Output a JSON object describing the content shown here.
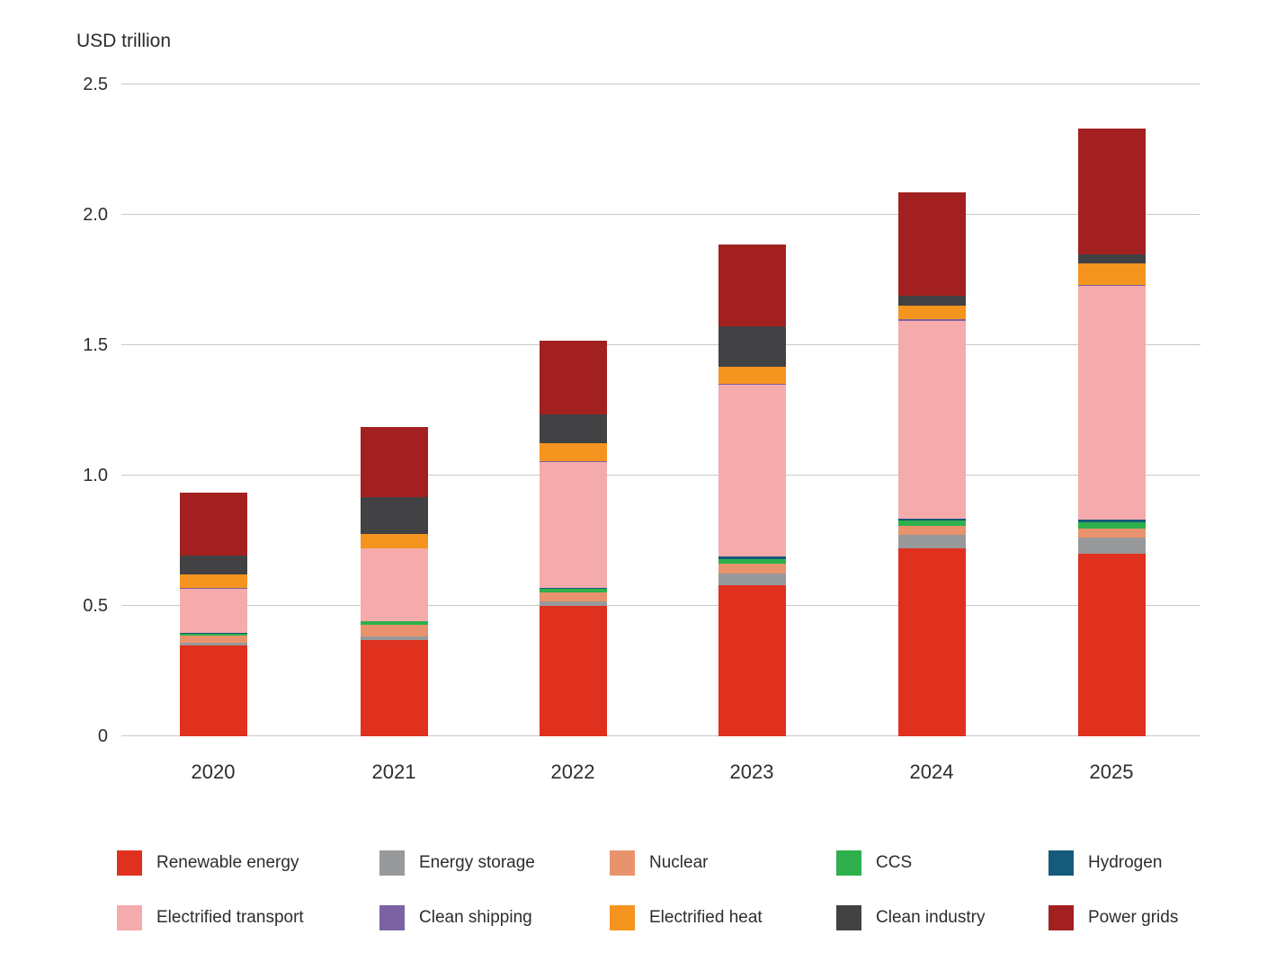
{
  "title": "USD trillion",
  "chart_data": {
    "type": "bar",
    "stacked": true,
    "title": "USD trillion",
    "unit": "USD trillion",
    "categories": [
      "2020",
      "2021",
      "2022",
      "2023",
      "2024",
      "2025"
    ],
    "ylim": [
      0,
      2.5
    ],
    "grid": true,
    "legend_position": "bottom",
    "y_ticks": [
      {
        "label": "0",
        "value": 0
      },
      {
        "label": "0.5",
        "value": 0.5
      },
      {
        "label": "1.0",
        "value": 1.0
      },
      {
        "label": "1.5",
        "value": 1.5
      },
      {
        "label": "2.0",
        "value": 2.0
      },
      {
        "label": "2.5",
        "value": 2.5
      }
    ],
    "series": [
      {
        "name": "Renewable energy",
        "color": "#e0301e",
        "values": [
          0.35,
          0.37,
          0.5,
          0.58,
          0.72,
          0.7
        ]
      },
      {
        "name": "Energy storage",
        "color": "#97999b",
        "values": [
          0.008,
          0.012,
          0.019,
          0.044,
          0.053,
          0.063
        ]
      },
      {
        "name": "Nuclear",
        "color": "#e8936d",
        "values": [
          0.029,
          0.047,
          0.034,
          0.037,
          0.034,
          0.032
        ]
      },
      {
        "name": "CCS",
        "color": "#2eb04c",
        "values": [
          0.005,
          0.011,
          0.011,
          0.018,
          0.019,
          0.025
        ]
      },
      {
        "name": "Hydrogen",
        "color": "#155a7a",
        "values": [
          0.004,
          0.003,
          0.004,
          0.012,
          0.008,
          0.012
        ]
      },
      {
        "name": "Electrified transport",
        "color": "#f5abac",
        "values": [
          0.17,
          0.277,
          0.483,
          0.657,
          0.76,
          0.895
        ]
      },
      {
        "name": "Clean shipping",
        "color": "#7d62a3",
        "values": [
          0.002,
          0.002,
          0.003,
          0.004,
          0.005,
          0.005
        ]
      },
      {
        "name": "Electrified heat",
        "color": "#f5941f",
        "values": [
          0.054,
          0.054,
          0.072,
          0.065,
          0.054,
          0.083
        ]
      },
      {
        "name": "Clean industry",
        "color": "#424143",
        "values": [
          0.072,
          0.14,
          0.107,
          0.155,
          0.037,
          0.034
        ]
      },
      {
        "name": "Power grids",
        "color": "#a32020",
        "values": [
          0.241,
          0.27,
          0.283,
          0.314,
          0.395,
          0.483
        ]
      }
    ],
    "totals": [
      0.93,
      1.18,
      1.52,
      1.89,
      2.09,
      2.33
    ]
  },
  "legend": {
    "rows": [
      [
        {
          "label": "Renewable energy",
          "color": "#e0301e"
        },
        {
          "label": "Energy storage",
          "color": "#97999b"
        },
        {
          "label": "Nuclear",
          "color": "#e8936d"
        },
        {
          "label": "CCS",
          "color": "#2eb04c"
        },
        {
          "label": "Hydrogen",
          "color": "#155a7a"
        }
      ],
      [
        {
          "label": "Electrified transport",
          "color": "#f5abac"
        },
        {
          "label": "Clean shipping",
          "color": "#7d62a3"
        },
        {
          "label": "Electrified heat",
          "color": "#f5941f"
        },
        {
          "label": "Clean industry",
          "color": "#424143"
        },
        {
          "label": "Power grids",
          "color": "#a32020"
        }
      ]
    ]
  }
}
